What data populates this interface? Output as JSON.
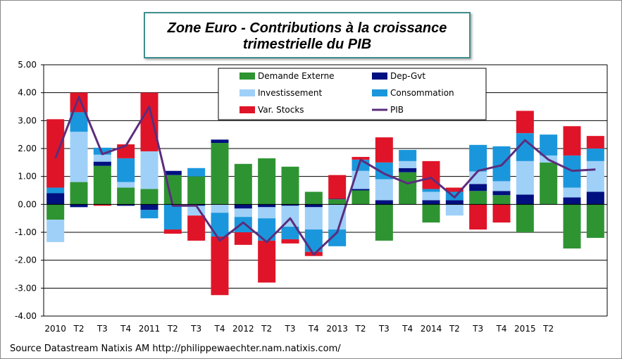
{
  "chart_data": {
    "type": "bar",
    "title": "Zone Euro - Contributions à la croissance trimestrielle du PIB",
    "title_lines": [
      "Zone Euro - Contributions à la croissance",
      "trimestrielle du PIB"
    ],
    "stacked": true,
    "ylim": [
      -4,
      5
    ],
    "yticks": [
      "5.00",
      "4.00",
      "3.00",
      "2.00",
      "1.00",
      "0.00",
      "-1.00",
      "-2.00",
      "-3.00",
      "-4.00"
    ],
    "x_tick_labels": [
      "2010",
      "T2",
      "T3",
      "T4",
      "2011",
      "T2",
      "T3",
      "T4",
      "2012",
      "T2",
      "T3",
      "T4",
      "2013",
      "T2",
      "T3",
      "T4",
      "2014",
      "T2",
      "T3",
      "T4",
      "2015",
      "T2",
      "",
      ""
    ],
    "legend_position": "top-center",
    "series": [
      {
        "name": "Demande Externe",
        "color": "#2e9432",
        "values": [
          -0.55,
          0.8,
          1.38,
          0.6,
          0.55,
          1.05,
          1.0,
          2.2,
          1.45,
          1.65,
          1.35,
          0.45,
          0.18,
          0.5,
          -1.3,
          1.15,
          -0.65,
          0.0,
          0.48,
          0.33,
          -1.0,
          1.5,
          -1.58,
          -1.2
        ]
      },
      {
        "name": "Dep-Gvt",
        "color": "#001080",
        "values": [
          0.4,
          -0.1,
          0.15,
          -0.05,
          -0.2,
          0.15,
          -0.05,
          0.12,
          -0.15,
          -0.1,
          -0.05,
          -0.1,
          0.02,
          0.05,
          0.15,
          0.15,
          0.15,
          0.15,
          0.25,
          0.15,
          0.35,
          0.0,
          0.25,
          0.45
        ]
      },
      {
        "name": "Investissement",
        "color": "#9fd0f8",
        "values": [
          -0.8,
          1.8,
          0.25,
          0.2,
          1.35,
          0.0,
          -0.35,
          -0.3,
          -0.3,
          -0.4,
          -0.75,
          -0.8,
          -0.9,
          0.65,
          0.75,
          0.25,
          0.3,
          -0.4,
          0.45,
          0.35,
          1.2,
          0.25,
          0.35,
          1.1
        ]
      },
      {
        "name": "Consommation",
        "color": "#1a97dc",
        "values": [
          0.2,
          0.7,
          0.25,
          0.85,
          -0.3,
          -0.9,
          0.3,
          -0.85,
          -0.55,
          -0.8,
          -0.45,
          -0.8,
          -0.6,
          0.4,
          0.6,
          0.4,
          0.1,
          0.3,
          0.95,
          1.25,
          1.0,
          0.75,
          1.15,
          0.45
        ]
      },
      {
        "name": "Var. Stocks",
        "color": "#e01428",
        "values": [
          2.45,
          0.7,
          -0.05,
          0.5,
          2.1,
          -0.15,
          -0.9,
          -2.1,
          -0.45,
          -1.5,
          -0.15,
          -0.15,
          0.85,
          0.1,
          0.9,
          0.0,
          1.0,
          0.15,
          -0.9,
          -0.65,
          0.8,
          0.0,
          1.05,
          0.45
        ]
      }
    ],
    "line": {
      "name": "PIB",
      "color": "#5b2d7d",
      "values": [
        1.65,
        3.85,
        1.8,
        2.1,
        3.5,
        -0.05,
        -0.05,
        -1.3,
        -0.65,
        -1.35,
        -0.5,
        -1.8,
        -1.0,
        1.6,
        1.1,
        0.75,
        0.95,
        0.25,
        1.2,
        1.4,
        2.3,
        1.6,
        1.2,
        1.25
      ]
    }
  },
  "footer": {
    "source": "Source Datastream  Natixis  AM http://philippewaechter.nam.natixis.com/"
  }
}
